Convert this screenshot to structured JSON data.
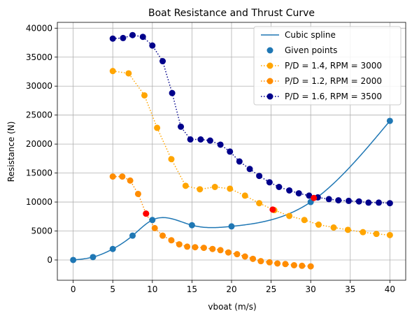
{
  "chart_data": {
    "type": "line",
    "title": "Boat Resistance and Thrust Curve",
    "xlabel": "vboat (m/s)",
    "ylabel": "Resistance (N)",
    "xlim": [
      -2,
      42
    ],
    "ylim": [
      -3500,
      41000
    ],
    "xticks": [
      0,
      5,
      10,
      15,
      20,
      25,
      30,
      35,
      40
    ],
    "yticks": [
      0,
      5000,
      10000,
      15000,
      20000,
      25000,
      30000,
      35000,
      40000
    ],
    "grid": true,
    "legend_position": "top-right",
    "spline": {
      "name": "Cubic spline",
      "color": "#1f77b4",
      "knots": [
        [
          0,
          0
        ],
        [
          2.5,
          500
        ],
        [
          5,
          1900
        ],
        [
          7.5,
          4200
        ],
        [
          10,
          6900
        ],
        [
          15,
          6000
        ],
        [
          20,
          5800
        ],
        [
          30,
          10000
        ],
        [
          40,
          24000
        ]
      ]
    },
    "given_points": {
      "name": "Given points",
      "color": "#1f77b4",
      "points": [
        [
          0,
          0
        ],
        [
          2.5,
          500
        ],
        [
          5,
          1900
        ],
        [
          7.5,
          4200
        ],
        [
          10,
          6900
        ],
        [
          15,
          6000
        ],
        [
          20,
          5800
        ],
        [
          30,
          10000
        ],
        [
          40,
          24000
        ]
      ]
    },
    "series": [
      {
        "name": "P/D = 1.4, RPM = 3000",
        "color": "#ffa500",
        "points": [
          [
            5,
            32600
          ],
          [
            7,
            32200
          ],
          [
            9,
            28400
          ],
          [
            10.6,
            22800
          ],
          [
            12.4,
            17400
          ],
          [
            14.2,
            12800
          ],
          [
            16,
            12200
          ],
          [
            17.9,
            12600
          ],
          [
            19.8,
            12300
          ],
          [
            21.7,
            11100
          ],
          [
            23.5,
            9800
          ],
          [
            25.4,
            8600
          ],
          [
            27.3,
            7600
          ],
          [
            29.2,
            6900
          ],
          [
            31,
            6100
          ],
          [
            32.9,
            5600
          ],
          [
            34.7,
            5200
          ],
          [
            36.6,
            4800
          ],
          [
            38.3,
            4500
          ],
          [
            40,
            4300
          ]
        ]
      },
      {
        "name": "P/D = 1.2, RPM = 2000",
        "color": "#ff8c00",
        "points": [
          [
            5,
            14400
          ],
          [
            6.2,
            14400
          ],
          [
            7.2,
            13700
          ],
          [
            8.2,
            11400
          ],
          [
            9.2,
            8000
          ],
          [
            10.3,
            5500
          ],
          [
            11.3,
            4200
          ],
          [
            12.4,
            3400
          ],
          [
            13.4,
            2700
          ],
          [
            14.4,
            2300
          ],
          [
            15.4,
            2200
          ],
          [
            16.5,
            2100
          ],
          [
            17.6,
            1900
          ],
          [
            18.6,
            1700
          ],
          [
            19.6,
            1300
          ],
          [
            20.7,
            1000
          ],
          [
            21.7,
            600
          ],
          [
            22.7,
            200
          ],
          [
            23.7,
            -200
          ],
          [
            24.8,
            -400
          ],
          [
            25.8,
            -600
          ],
          [
            26.8,
            -700
          ],
          [
            27.9,
            -900
          ],
          [
            28.9,
            -1000
          ],
          [
            30,
            -1100
          ]
        ]
      },
      {
        "name": "P/D = 1.6, RPM = 3500",
        "color": "#00008b",
        "points": [
          [
            5,
            38200
          ],
          [
            6.3,
            38300
          ],
          [
            7.5,
            38800
          ],
          [
            8.8,
            38500
          ],
          [
            10,
            37000
          ],
          [
            11.3,
            34300
          ],
          [
            12.5,
            28800
          ],
          [
            13.6,
            23000
          ],
          [
            14.8,
            20800
          ],
          [
            16.1,
            20800
          ],
          [
            17.3,
            20600
          ],
          [
            18.6,
            19900
          ],
          [
            19.8,
            18700
          ],
          [
            21,
            17000
          ],
          [
            22.3,
            15700
          ],
          [
            23.5,
            14500
          ],
          [
            24.8,
            13400
          ],
          [
            26,
            12600
          ],
          [
            27.3,
            12000
          ],
          [
            28.5,
            11500
          ],
          [
            29.8,
            11100
          ],
          [
            30.9,
            10800
          ],
          [
            32.3,
            10500
          ],
          [
            33.5,
            10300
          ],
          [
            34.8,
            10200
          ],
          [
            36.1,
            10100
          ],
          [
            37.3,
            9900
          ],
          [
            38.6,
            9900
          ],
          [
            40,
            9800
          ]
        ]
      }
    ],
    "intersections": {
      "color": "#ff0000",
      "points": [
        [
          9.2,
          8000
        ],
        [
          25.2,
          8700
        ],
        [
          30.4,
          10700
        ]
      ]
    }
  }
}
